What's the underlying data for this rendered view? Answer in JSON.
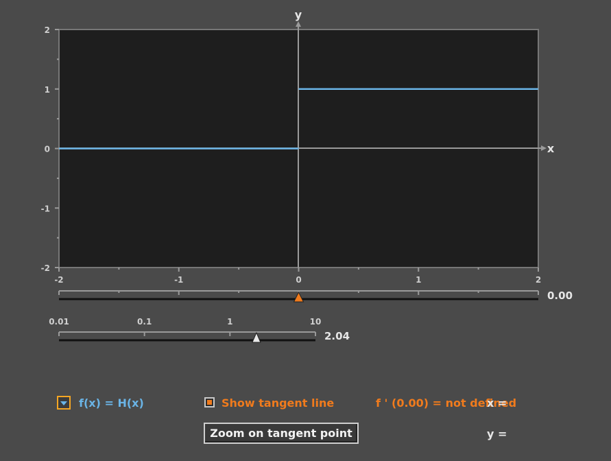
{
  "graph": {
    "axis_x_label": "x",
    "axis_y_label": "y",
    "x_ticks": [
      "-2",
      "-1",
      "0",
      "1",
      "2"
    ],
    "y_ticks": [
      "2",
      "1",
      "0",
      "-1",
      "-2"
    ]
  },
  "chart_data": {
    "type": "line",
    "xlim": [
      -2,
      2
    ],
    "ylim": [
      -2,
      2
    ],
    "series": [
      {
        "x": [
          -2,
          0
        ],
        "y": [
          0,
          0
        ]
      },
      {
        "x": [
          0,
          2
        ],
        "y": [
          1,
          1
        ]
      }
    ],
    "grid": false,
    "colors": {
      "curve": "#6ab4e6",
      "plot_bg": "#1e1e1e",
      "axis": "#9a9a9a"
    }
  },
  "x_slider": {
    "value": 0.0,
    "value_label": "0.00",
    "min": -2,
    "max": 2,
    "thumb_color": "#f07b1d"
  },
  "zoom_slider": {
    "value": 2.04,
    "value_label": "2.04",
    "scale": "log",
    "min": 0.01,
    "max": 10,
    "tick_labels": [
      "0.01",
      "0.1",
      "1",
      "10"
    ]
  },
  "controls": {
    "function_label": "f(x) = H(x)",
    "show_tangent_label": "Show tangent line",
    "show_tangent_checked": true,
    "derivative_text": "f ' (0.00) = not defined",
    "x_eq_label": "x =",
    "y_eq_label": "y =",
    "zoom_button_label": "Zoom on tangent point"
  },
  "colors": {
    "background": "#4a4a4a",
    "orange": "#f07b1d",
    "blue": "#6ab4e6",
    "text": "#e6e6e6"
  }
}
